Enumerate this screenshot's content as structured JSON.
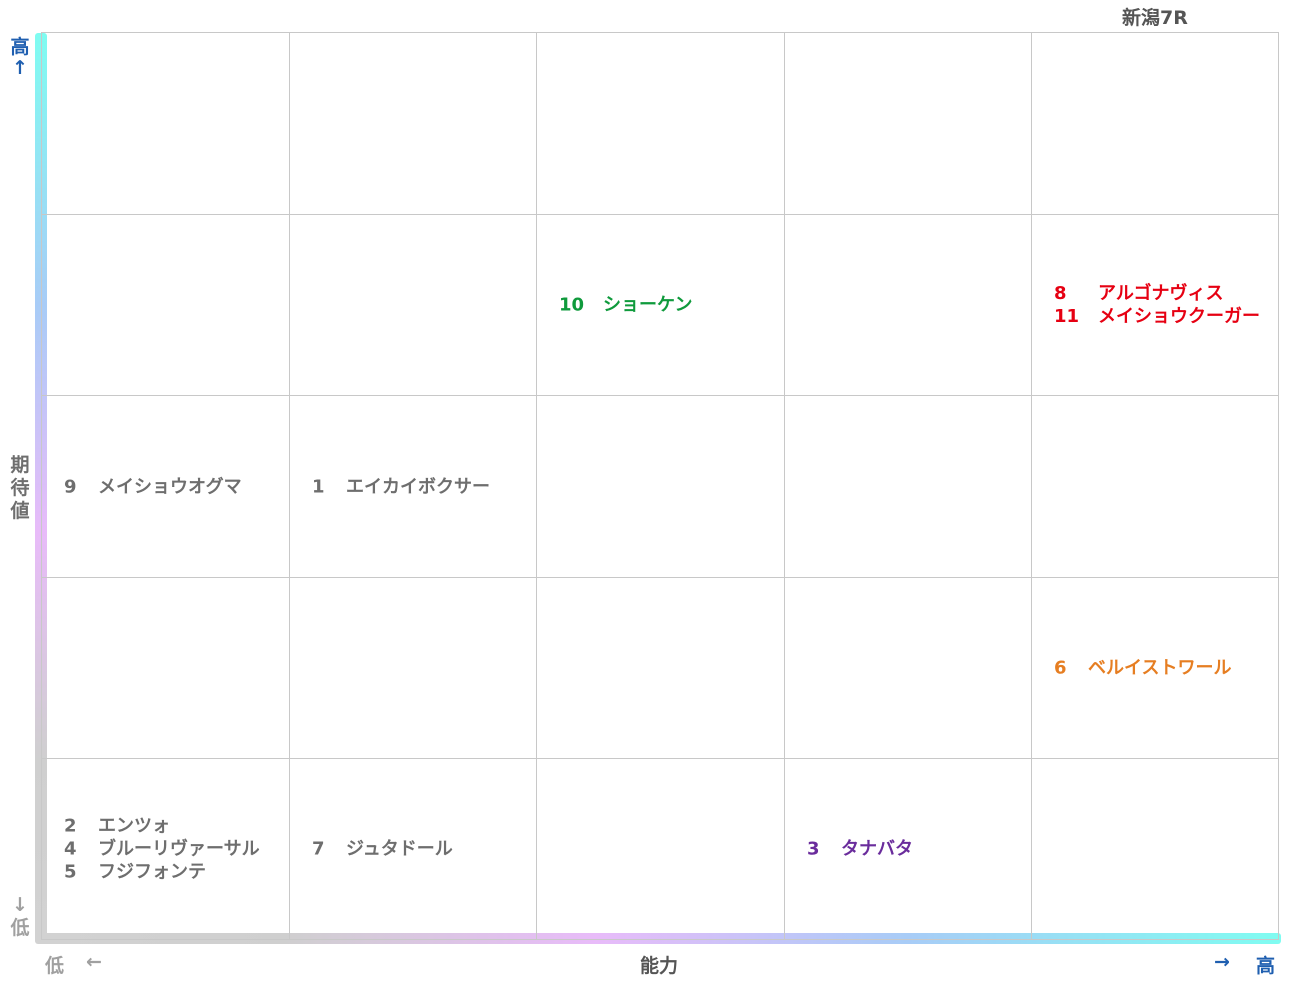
{
  "title": "新潟7R",
  "axes": {
    "y_high_label": "高",
    "y_high_arrow": "↑",
    "y_label": [
      "期",
      "待",
      "値"
    ],
    "y_low_arrow": "↓",
    "y_low_label": "低",
    "x_low_label": "低",
    "x_low_arrow": "←",
    "x_label": "能力",
    "x_high_arrow": "→",
    "x_high_label": "高"
  },
  "chart_data": {
    "type": "table",
    "rows": 5,
    "columns": 5,
    "cells": [
      {
        "row": 1,
        "col": 2,
        "color": "#0f9a3c",
        "entries": [
          {
            "number": "10",
            "name": "ショーケン"
          }
        ]
      },
      {
        "row": 1,
        "col": 4,
        "color": "#e60012",
        "entries": [
          {
            "number": "8",
            "name": "アルゴナヴィス"
          },
          {
            "number": "11",
            "name": "メイショウクーガー"
          }
        ]
      },
      {
        "row": 2,
        "col": 0,
        "color": "#6e6e6e",
        "entries": [
          {
            "number": "9",
            "name": "メイショウオグマ"
          }
        ]
      },
      {
        "row": 2,
        "col": 1,
        "color": "#6e6e6e",
        "entries": [
          {
            "number": "1",
            "name": "エイカイボクサー"
          }
        ]
      },
      {
        "row": 3,
        "col": 4,
        "color": "#e67e22",
        "entries": [
          {
            "number": "6",
            "name": "ベルイストワール"
          }
        ]
      },
      {
        "row": 4,
        "col": 0,
        "color": "#6e6e6e",
        "entries": [
          {
            "number": "2",
            "name": "エンツォ"
          },
          {
            "number": "4",
            "name": "ブルーリヴァーサル"
          },
          {
            "number": "5",
            "name": "フジフォンテ"
          }
        ]
      },
      {
        "row": 4,
        "col": 1,
        "color": "#6e6e6e",
        "entries": [
          {
            "number": "7",
            "name": "ジュタドール"
          }
        ]
      },
      {
        "row": 4,
        "col": 3,
        "color": "#6a2c9c",
        "entries": [
          {
            "number": "3",
            "name": "タナバタ"
          }
        ]
      }
    ]
  },
  "colors": {
    "title": "#555555",
    "y_high": "#1f5fb0",
    "x_high": "#1f5fb0",
    "y_label": "#6e6e6e",
    "low": "#a0a0a0",
    "x_label": "#555555"
  }
}
